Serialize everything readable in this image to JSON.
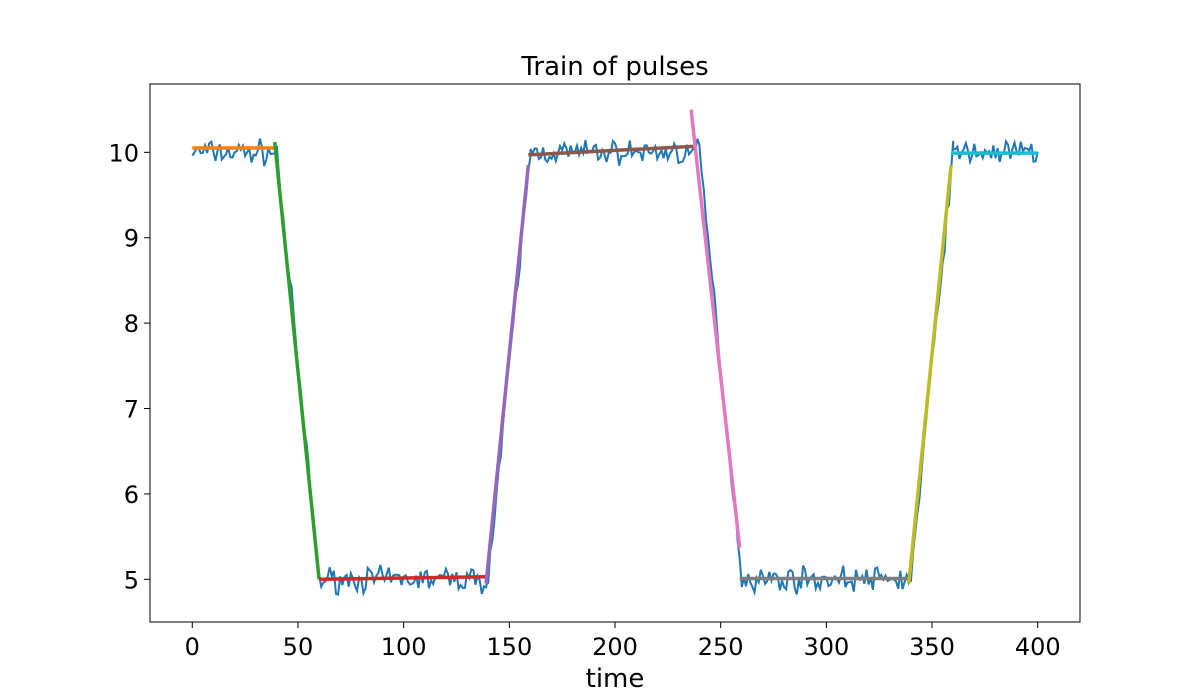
{
  "chart_data": {
    "type": "line",
    "title": "Train of pulses",
    "xlabel": "time",
    "ylabel": "",
    "xlim": [
      -20,
      420
    ],
    "ylim": [
      4.5,
      10.8
    ],
    "xticks": [
      0,
      50,
      100,
      150,
      200,
      250,
      300,
      350,
      400
    ],
    "yticks": [
      5,
      6,
      7,
      8,
      9,
      10
    ],
    "grid": false,
    "signal": {
      "color": "#1f77b4",
      "pulse_train": [
        {
          "x0": 0,
          "x1": 40,
          "y0": 10.0,
          "y1": 10.0
        },
        {
          "x0": 40,
          "x1": 60,
          "y0": 10.0,
          "y1": 5.0
        },
        {
          "x0": 60,
          "x1": 140,
          "y0": 5.0,
          "y1": 5.0
        },
        {
          "x0": 140,
          "x1": 160,
          "y0": 5.0,
          "y1": 10.0
        },
        {
          "x0": 160,
          "x1": 240,
          "y0": 10.0,
          "y1": 10.0
        },
        {
          "x0": 240,
          "x1": 260,
          "y0": 10.0,
          "y1": 5.0
        },
        {
          "x0": 260,
          "x1": 340,
          "y0": 5.0,
          "y1": 5.0
        },
        {
          "x0": 340,
          "x1": 360,
          "y0": 5.0,
          "y1": 10.0
        },
        {
          "x0": 360,
          "x1": 400,
          "y0": 10.0,
          "y1": 10.0
        }
      ],
      "noise_amplitude": 0.2
    },
    "fits": [
      {
        "color": "#ff7f0e",
        "x": [
          0,
          39
        ],
        "y": [
          10.05,
          10.05
        ]
      },
      {
        "color": "#2ca02c",
        "x": [
          39,
          60
        ],
        "y": [
          10.12,
          5.0
        ]
      },
      {
        "color": "#d62728",
        "x": [
          60,
          139
        ],
        "y": [
          5.0,
          5.03
        ]
      },
      {
        "color": "#9467bd",
        "x": [
          139,
          159
        ],
        "y": [
          4.95,
          9.85
        ]
      },
      {
        "color": "#8c564b",
        "x": [
          159,
          237
        ],
        "y": [
          9.97,
          10.07
        ]
      },
      {
        "color": "#e377c2",
        "x": [
          236,
          259
        ],
        "y": [
          10.5,
          5.37
        ]
      },
      {
        "color": "#7f7f7f",
        "x": [
          259,
          339
        ],
        "y": [
          5.01,
          5.01
        ]
      },
      {
        "color": "#bcbd22",
        "x": [
          339,
          359
        ],
        "y": [
          4.95,
          9.85
        ]
      },
      {
        "color": "#17becf",
        "x": [
          359,
          400
        ],
        "y": [
          9.99,
          9.99
        ]
      }
    ]
  }
}
